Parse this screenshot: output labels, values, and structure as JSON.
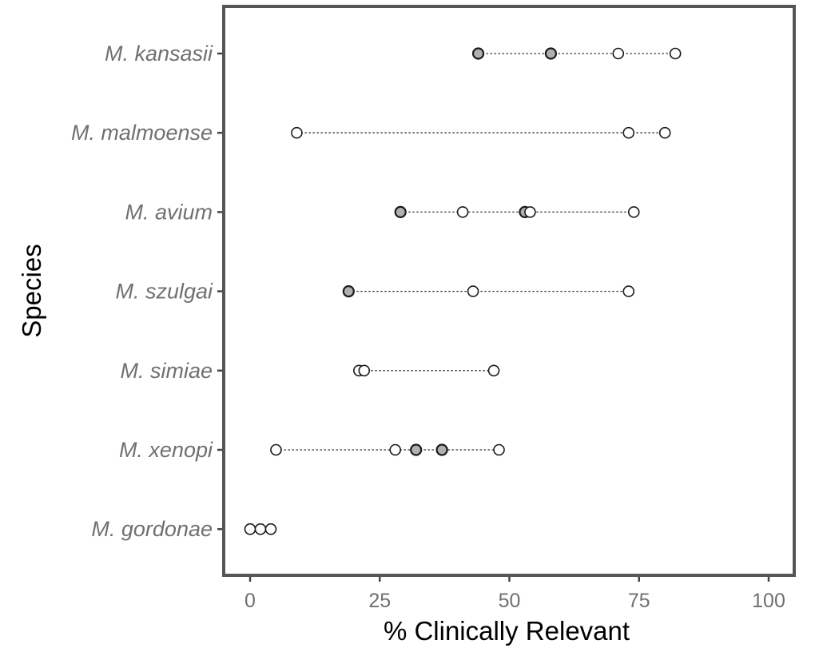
{
  "chart_data": {
    "type": "scatter",
    "title": "",
    "xlabel": "% Clinically Relevant",
    "ylabel": "Species",
    "xlim": [
      -5,
      105
    ],
    "x_ticks": [
      0,
      25,
      50,
      75,
      100
    ],
    "grid": false,
    "legend": "none",
    "categories": [
      "M. kansasii",
      "M. malmoense",
      "M. avium",
      "M. szulgai",
      "M. simiae",
      "M. xenopi",
      "M. gordonae"
    ],
    "series": [
      {
        "style": "filled",
        "points": [
          {
            "category": "M. kansasii",
            "x": 44
          },
          {
            "category": "M. kansasii",
            "x": 58
          },
          {
            "category": "M. avium",
            "x": 29
          },
          {
            "category": "M. avium",
            "x": 53
          },
          {
            "category": "M. szulgai",
            "x": 19
          },
          {
            "category": "M. xenopi",
            "x": 32
          },
          {
            "category": "M. xenopi",
            "x": 37
          }
        ]
      },
      {
        "style": "open",
        "points": [
          {
            "category": "M. kansasii",
            "x": 71
          },
          {
            "category": "M. kansasii",
            "x": 82
          },
          {
            "category": "M. malmoense",
            "x": 9
          },
          {
            "category": "M. malmoense",
            "x": 73
          },
          {
            "category": "M. malmoense",
            "x": 80
          },
          {
            "category": "M. avium",
            "x": 41
          },
          {
            "category": "M. avium",
            "x": 54
          },
          {
            "category": "M. avium",
            "x": 74
          },
          {
            "category": "M. szulgai",
            "x": 43
          },
          {
            "category": "M. szulgai",
            "x": 73
          },
          {
            "category": "M. simiae",
            "x": 21
          },
          {
            "category": "M. simiae",
            "x": 22
          },
          {
            "category": "M. simiae",
            "x": 47
          },
          {
            "category": "M. xenopi",
            "x": 5
          },
          {
            "category": "M. xenopi",
            "x": 28
          },
          {
            "category": "M. xenopi",
            "x": 48
          },
          {
            "category": "M. gordonae",
            "x": 0
          },
          {
            "category": "M. gordonae",
            "x": 2
          },
          {
            "category": "M. gordonae",
            "x": 4
          }
        ]
      }
    ],
    "colors": {
      "filled_point": "#b0b0b0",
      "open_point": "#ffffff",
      "point_stroke": "#1a1a1a",
      "panel_border": "#555555",
      "range_line": "#333333"
    }
  }
}
